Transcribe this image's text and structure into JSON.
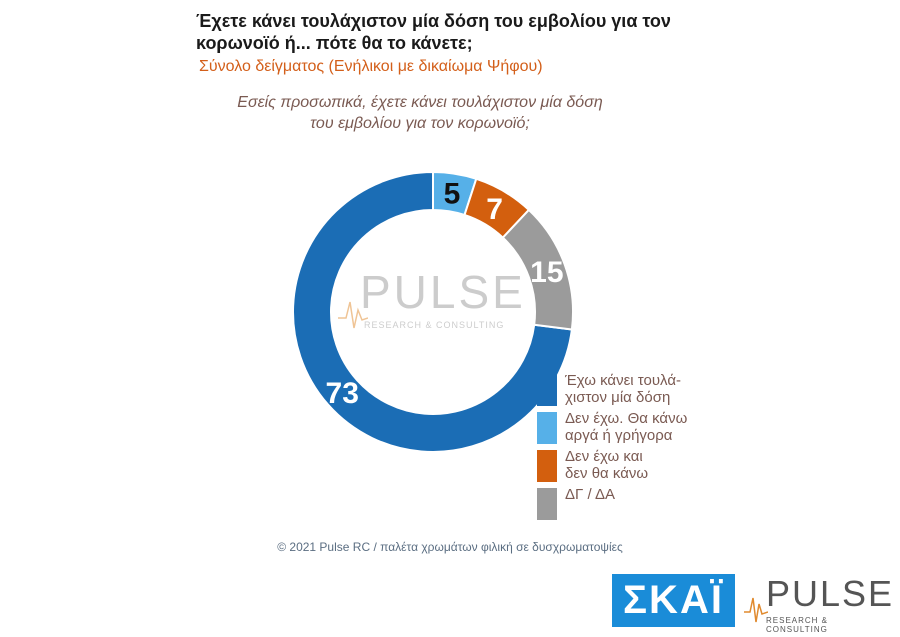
{
  "header": {
    "title": "Έχετε κάνει τουλάχιστον μία δόση του εμβολίου για τον κορωνοϊό ή... πότε θα το κάνετε;",
    "subtitle": "Σύνολο δείγματος (Ενήλικοι με δικαίωμα Ψήφου)",
    "question": "Εσείς προσωπικά, έχετε κάνει τουλάχιστον μία δόση του εμβολίου για τον κορωνοϊό;"
  },
  "chart_data": {
    "type": "pie",
    "style": "donut",
    "title": "",
    "categories": [
      "Έχω κάνει τουλάχιστον μία δόση",
      "Δεν έχω. Θα κάνω αργά ή γρήγορα",
      "Δεν έχω και δεν θα κάνω",
      "ΔΓ / ΔΑ"
    ],
    "legend_labels": [
      "Έχω κάνει τουλά-\nχιστον μία δόση",
      "Δεν έχω. Θα κάνω\nαργά ή γρήγορα",
      "Δεν έχω και\nδεν θα κάνω",
      "ΔΓ / ΔΑ"
    ],
    "values": [
      73,
      5,
      7,
      15
    ],
    "colors": [
      "#1b6db5",
      "#56b0e8",
      "#d35f0e",
      "#9b9b9b"
    ],
    "label_colors": [
      "#ffffff",
      "#111111",
      "#ffffff",
      "#ffffff"
    ],
    "legend_placement": "bottom-right"
  },
  "footer": {
    "copyright": "© 2021 Pulse RC  /  παλέτα χρωμάτων φιλική σε δυσχρωματοψίες"
  },
  "logos": {
    "skai": "ΣΚΑΪ",
    "pulse": "PULSE",
    "pulse_sub": "RESEARCH & CONSULTING"
  },
  "watermark": {
    "word": "PULSE",
    "sub": "RESEARCH & CONSULTING"
  }
}
